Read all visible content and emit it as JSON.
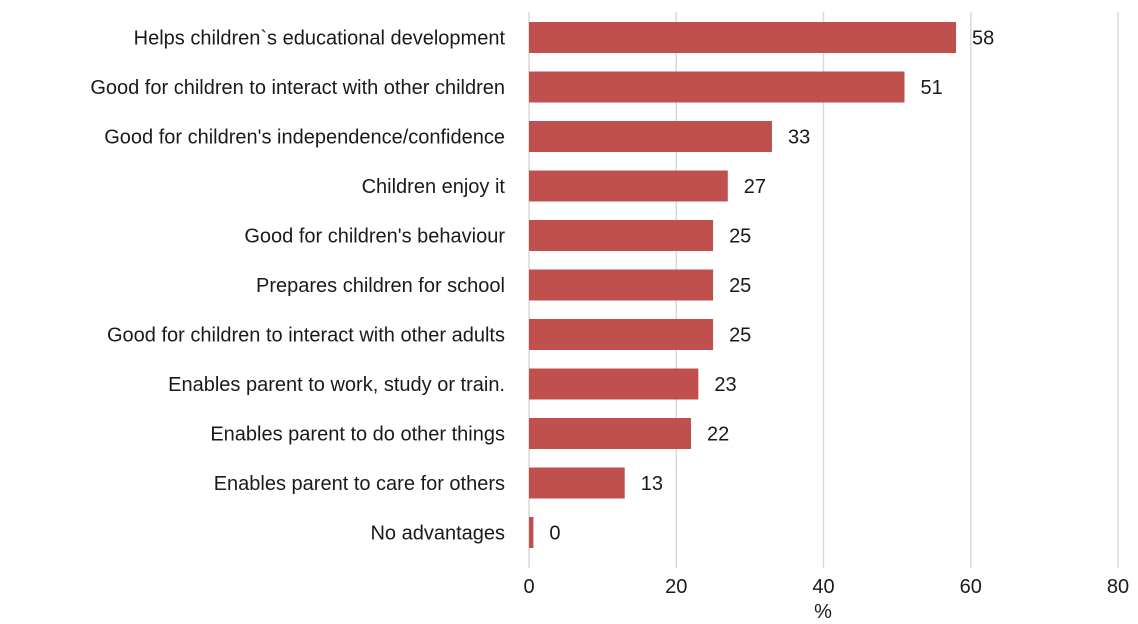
{
  "chart_data": {
    "type": "bar",
    "orientation": "horizontal",
    "categories": [
      "Helps children`s educational development",
      "Good for children to interact with other children",
      "Good for children's independence/confidence",
      "Children enjoy it",
      "Good for children's behaviour",
      "Prepares children for school",
      "Good for children to interact with other adults",
      "Enables parent to work, study or train.",
      "Enables parent to do other things",
      "Enables parent to care for others",
      "No advantages"
    ],
    "values": [
      58,
      51,
      33,
      27,
      25,
      25,
      25,
      23,
      22,
      13,
      0
    ],
    "data_labels": [
      "58",
      "51",
      "33",
      "27",
      "25",
      "25",
      "25",
      "23",
      "22",
      "13",
      "0"
    ],
    "actual_values": [
      58,
      51,
      33,
      27,
      25,
      25,
      25,
      23,
      22,
      13,
      0.6
    ],
    "xlabel": "%",
    "ylabel": "",
    "xlim": [
      0,
      80
    ],
    "x_ticks": [
      "0",
      "20",
      "40",
      "60",
      "80"
    ],
    "grid": "vertical",
    "legend": "none",
    "bar_color": "#c0504d"
  }
}
